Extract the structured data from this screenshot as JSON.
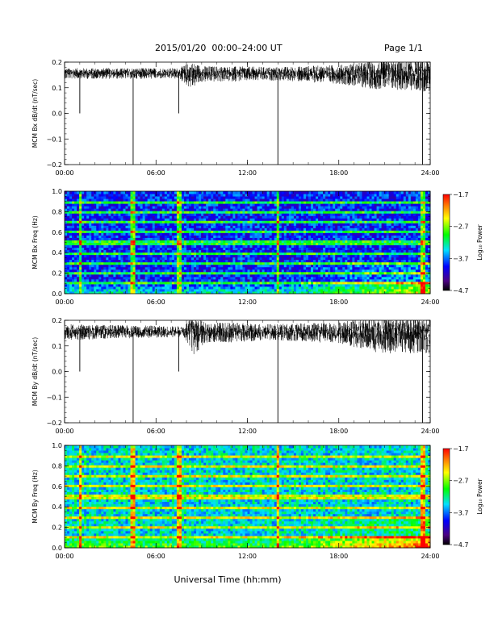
{
  "header": {
    "title": "2015/01/20  00:00–24:00 UT",
    "page": "Page 1/1"
  },
  "chart_data": [
    {
      "type": "line",
      "ylabel": "MCM Bx dB/dt (nT/sec)",
      "xlim": [
        0,
        24
      ],
      "ylim": [
        -0.2,
        0.2
      ],
      "y_ticks": [
        "0.2",
        "0.1",
        "0.0",
        "−0.1",
        "−0.2"
      ],
      "x_ticks": [
        "00:00",
        "06:00",
        "12:00",
        "18:00",
        "24:00"
      ],
      "baseline": 0.16,
      "noise": [
        {
          "t": 0,
          "amp": 0.02
        },
        {
          "t": 4,
          "amp": 0.02
        },
        {
          "t": 7.5,
          "amp": 0.02
        },
        {
          "t": 8.3,
          "amp": 0.05
        },
        {
          "t": 9,
          "amp": 0.03
        },
        {
          "t": 14,
          "amp": 0.025
        },
        {
          "t": 18,
          "amp": 0.035
        },
        {
          "t": 20,
          "amp": 0.05
        },
        {
          "t": 24,
          "amp": 0.06
        }
      ],
      "spikes": [
        {
          "t": 1.0,
          "y": 0.0
        },
        {
          "t": 4.5,
          "y": -0.2
        },
        {
          "t": 7.5,
          "y": 0.0
        },
        {
          "t": 14.0,
          "y": -0.2
        },
        {
          "t": 23.5,
          "y": -0.2
        }
      ]
    },
    {
      "type": "heatmap",
      "ylabel": "MCM Bx Freq (Hz)",
      "xlim": [
        0,
        24
      ],
      "ylim": [
        0,
        1.0
      ],
      "y_ticks": [
        "1.0",
        "0.8",
        "0.6",
        "0.4",
        "0.2",
        "0.0"
      ],
      "x_ticks": [
        "00:00",
        "06:00",
        "12:00",
        "18:00",
        "24:00"
      ],
      "colorbar": {
        "label": "Log₁₀ Power",
        "ticks": [
          "−1.7",
          "−2.7",
          "−3.7",
          "−4.7"
        ],
        "range": [
          -4.7,
          -1.7
        ]
      },
      "harmonic_bands_hz": [
        0.1,
        0.2,
        0.3,
        0.4,
        0.5,
        0.6,
        0.7,
        0.8,
        0.9
      ],
      "vertical_lines_hours": [
        1.0,
        4.5,
        7.5,
        14.0,
        23.5
      ],
      "background_level": -3.9
    },
    {
      "type": "line",
      "ylabel": "MCM By dB/dt (nT/sec)",
      "xlim": [
        0,
        24
      ],
      "ylim": [
        -0.2,
        0.2
      ],
      "y_ticks": [
        "0.2",
        "0.1",
        "0.0",
        "−0.1",
        "−0.2"
      ],
      "x_ticks": [
        "00:00",
        "06:00",
        "12:00",
        "18:00",
        "24:00"
      ],
      "baseline": 0.16,
      "noise": [
        {
          "t": 0,
          "amp": 0.03
        },
        {
          "t": 4,
          "amp": 0.025
        },
        {
          "t": 7.8,
          "amp": 0.02
        },
        {
          "t": 8.4,
          "amp": 0.08
        },
        {
          "t": 9.2,
          "amp": 0.04
        },
        {
          "t": 14,
          "amp": 0.03
        },
        {
          "t": 18,
          "amp": 0.04
        },
        {
          "t": 20.5,
          "amp": 0.07
        },
        {
          "t": 24,
          "amp": 0.07
        }
      ],
      "spikes": [
        {
          "t": 1.0,
          "y": 0.0
        },
        {
          "t": 4.5,
          "y": -0.2
        },
        {
          "t": 7.5,
          "y": 0.0
        },
        {
          "t": 14.0,
          "y": -0.2
        },
        {
          "t": 23.5,
          "y": -0.2
        }
      ]
    },
    {
      "type": "heatmap",
      "ylabel": "MCM By Freq (Hz)",
      "xlim": [
        0,
        24
      ],
      "ylim": [
        0,
        1.0
      ],
      "y_ticks": [
        "1.0",
        "0.8",
        "0.6",
        "0.4",
        "0.2",
        "0.0"
      ],
      "x_ticks": [
        "00:00",
        "06:00",
        "12:00",
        "18:00",
        "24:00"
      ],
      "colorbar": {
        "label": "Log₁₀ Power",
        "ticks": [
          "−1.7",
          "−2.7",
          "−3.7",
          "−4.7"
        ],
        "range": [
          -4.7,
          -1.7
        ]
      },
      "harmonic_bands_hz": [
        0.1,
        0.2,
        0.3,
        0.4,
        0.5,
        0.6,
        0.7,
        0.8,
        0.9
      ],
      "vertical_lines_hours": [
        1.0,
        4.5,
        7.5,
        14.0,
        23.5
      ],
      "background_level": -3.4
    }
  ],
  "xlabel": "Universal Time (hh:mm)"
}
